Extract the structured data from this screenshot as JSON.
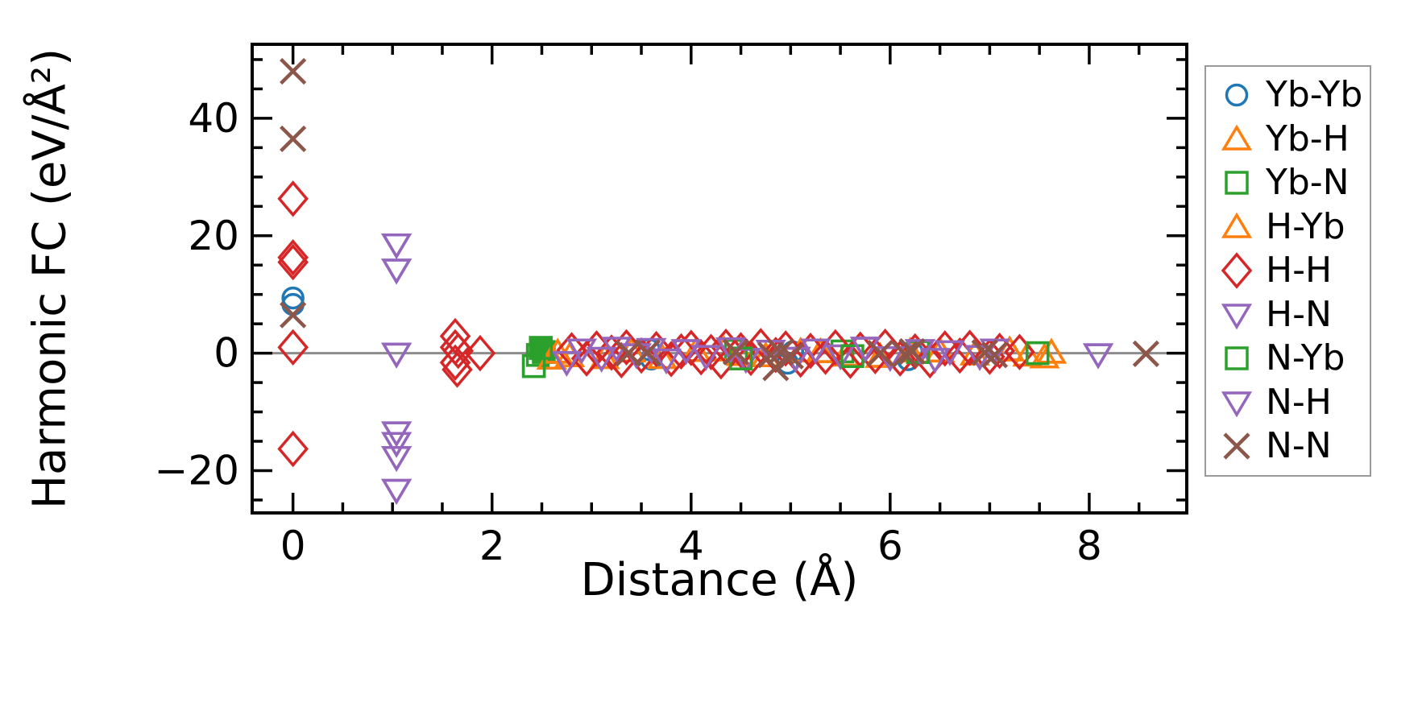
{
  "chart_data": {
    "type": "scatter",
    "title": "",
    "xlabel": "Distance (Å)",
    "ylabel": "Harmonic FC (eV/Å²)",
    "xlim": [
      -0.41,
      8.98
    ],
    "ylim": [
      -27.2,
      52.6
    ],
    "grid": false,
    "legend_position": "outside-right",
    "x_major_ticks": [
      {
        "v": 0,
        "label": "0"
      },
      {
        "v": 2,
        "label": "2"
      },
      {
        "v": 4,
        "label": "4"
      },
      {
        "v": 6,
        "label": "6"
      },
      {
        "v": 8,
        "label": "8"
      }
    ],
    "y_major_ticks": [
      {
        "v": 40,
        "label": "40"
      },
      {
        "v": 20,
        "label": "20"
      },
      {
        "v": 0,
        "label": "0"
      },
      {
        "v": -20,
        "label": "−20"
      }
    ],
    "x_minor_interval": 0.5,
    "x_major_interval": 2,
    "y_minor_interval": 5,
    "y_major_interval": 20,
    "zero_line": {
      "y": 0,
      "color": "#8c8c8c"
    },
    "axis_color": "#000000",
    "series": [
      {
        "name": "Yb-Yb",
        "marker": "circle",
        "color": "#1f77b4",
        "points": [
          [
            0,
            9.4
          ],
          [
            0,
            8.3
          ],
          [
            3.58,
            0.6
          ],
          [
            3.6,
            -1.0
          ],
          [
            4.97,
            -1.7
          ],
          [
            5.02,
            0.2
          ],
          [
            6.18,
            -1.1
          ],
          [
            6.22,
            0.2
          ]
        ]
      },
      {
        "name": "Yb-H",
        "marker": "triangle-up",
        "color": "#ff7f0e",
        "points": [
          [
            2.6,
            -0.9
          ],
          [
            2.66,
            0.1
          ],
          [
            2.78,
            -0.5
          ],
          [
            3.13,
            -0.8
          ],
          [
            3.4,
            0.3
          ],
          [
            3.71,
            -0.8
          ],
          [
            4.05,
            0.4
          ],
          [
            4.33,
            0.5
          ],
          [
            4.5,
            -0.3
          ],
          [
            4.75,
            -0.5
          ],
          [
            5.1,
            0.3
          ],
          [
            5.3,
            0.2
          ],
          [
            5.55,
            -0.4
          ],
          [
            5.9,
            -0.6
          ],
          [
            6.2,
            0.3
          ],
          [
            6.5,
            0.3
          ],
          [
            6.85,
            -0.2
          ],
          [
            7.2,
            0.5
          ],
          [
            7.38,
            -0.4
          ],
          [
            7.55,
            -0.7
          ],
          [
            7.62,
            0.1
          ]
        ]
      },
      {
        "name": "Yb-N",
        "marker": "square",
        "color": "#2ca02c",
        "points": [
          [
            2.42,
            -2.2
          ],
          [
            2.46,
            -0.3
          ],
          [
            4.45,
            0.4
          ],
          [
            5.52,
            0.3
          ],
          [
            6.28,
            0.2
          ],
          [
            7.48,
            0.0
          ]
        ],
        "filled_points": [
          [
            2.49,
            0.9
          ],
          [
            2.52,
            0.2
          ]
        ]
      },
      {
        "name": "H-Yb",
        "marker": "triangle-up",
        "color": "#ff7f0e",
        "points": [
          [
            2.6,
            -0.9
          ],
          [
            2.66,
            0.1
          ],
          [
            3.13,
            -0.8
          ],
          [
            3.71,
            -0.8
          ],
          [
            4.33,
            0.5
          ],
          [
            4.75,
            -0.5
          ],
          [
            5.3,
            0.2
          ],
          [
            5.9,
            -0.6
          ],
          [
            6.5,
            0.3
          ],
          [
            7.2,
            0.5
          ],
          [
            7.62,
            0.1
          ]
        ]
      },
      {
        "name": "H-H",
        "marker": "diamond",
        "color": "#d62728",
        "points": [
          [
            0,
            26.3
          ],
          [
            0,
            16.3
          ],
          [
            0,
            15.5
          ],
          [
            0,
            1.0
          ],
          [
            0,
            -16.3
          ],
          [
            1.63,
            2.9
          ],
          [
            1.63,
            1.0
          ],
          [
            1.66,
            0.4
          ],
          [
            1.63,
            -1.6
          ],
          [
            1.65,
            -2.8
          ],
          [
            1.88,
            0.0
          ],
          [
            2.8,
            0.5
          ],
          [
            2.95,
            -0.9
          ],
          [
            3.05,
            0.8
          ],
          [
            3.2,
            0.1
          ],
          [
            3.3,
            -1.2
          ],
          [
            3.35,
            1.0
          ],
          [
            3.5,
            -0.4
          ],
          [
            3.65,
            0.7
          ],
          [
            3.8,
            -1.0
          ],
          [
            3.9,
            0.3
          ],
          [
            4.0,
            0.9
          ],
          [
            4.1,
            -0.7
          ],
          [
            4.2,
            0.2
          ],
          [
            4.3,
            -1.4
          ],
          [
            4.35,
            1.1
          ],
          [
            4.5,
            0.5
          ],
          [
            4.6,
            -0.8
          ],
          [
            4.7,
            1.2
          ],
          [
            4.85,
            -0.3
          ],
          [
            4.95,
            0.8
          ],
          [
            5.1,
            -1.1
          ],
          [
            5.2,
            0.4
          ],
          [
            5.35,
            -0.6
          ],
          [
            5.45,
            1.0
          ],
          [
            5.6,
            -1.3
          ],
          [
            5.7,
            0.6
          ],
          [
            5.85,
            -0.5
          ],
          [
            5.95,
            1.1
          ],
          [
            6.1,
            -0.9
          ],
          [
            6.25,
            0.3
          ],
          [
            6.4,
            -1.2
          ],
          [
            6.55,
            0.8
          ],
          [
            6.7,
            -0.4
          ],
          [
            6.8,
            0.9
          ],
          [
            7.0,
            -0.6
          ],
          [
            7.1,
            0.4
          ],
          [
            7.3,
            0.2
          ]
        ]
      },
      {
        "name": "H-N",
        "marker": "triangle-down",
        "color": "#9467bd",
        "points": [
          [
            1.04,
            18.5
          ],
          [
            1.04,
            14.2
          ],
          [
            1.04,
            -0.1
          ],
          [
            1.04,
            -13.5
          ],
          [
            1.04,
            -15.3
          ],
          [
            1.04,
            -17.7
          ],
          [
            1.04,
            -23.3
          ],
          [
            2.75,
            -1.5
          ],
          [
            2.9,
            0.6
          ],
          [
            3.1,
            -0.8
          ],
          [
            3.25,
            0.9
          ],
          [
            3.45,
            -0.2
          ],
          [
            3.6,
            0.7
          ],
          [
            3.75,
            -1.1
          ],
          [
            3.95,
            0.5
          ],
          [
            4.15,
            -0.5
          ],
          [
            4.4,
            0.8
          ],
          [
            4.55,
            -1.0
          ],
          [
            4.8,
            0.4
          ],
          [
            5.05,
            -0.8
          ],
          [
            5.25,
            0.6
          ],
          [
            5.5,
            -0.4
          ],
          [
            5.75,
            0.9
          ],
          [
            6.0,
            -0.7
          ],
          [
            6.3,
            0.5
          ],
          [
            6.45,
            -1.0
          ],
          [
            6.6,
            0.3
          ],
          [
            6.9,
            -0.5
          ],
          [
            7.05,
            0.6
          ],
          [
            8.09,
            -0.2
          ]
        ]
      },
      {
        "name": "N-Yb",
        "marker": "square",
        "color": "#2ca02c",
        "points": [
          [
            2.42,
            -2.2
          ],
          [
            2.49,
            0.9
          ],
          [
            4.5,
            -0.9
          ],
          [
            5.62,
            -0.5
          ],
          [
            6.28,
            0.2
          ],
          [
            7.48,
            0.0
          ]
        ]
      },
      {
        "name": "N-H",
        "marker": "triangle-down",
        "color": "#9467bd",
        "points": [
          [
            1.04,
            18.5
          ],
          [
            1.04,
            14.2
          ],
          [
            1.04,
            -0.1
          ],
          [
            1.04,
            -13.5
          ],
          [
            1.04,
            -15.3
          ],
          [
            1.04,
            -17.7
          ],
          [
            1.04,
            -23.3
          ],
          [
            2.9,
            0.6
          ],
          [
            3.45,
            -0.2
          ],
          [
            3.95,
            0.5
          ],
          [
            4.4,
            0.8
          ],
          [
            5.05,
            -0.8
          ],
          [
            5.75,
            0.9
          ],
          [
            6.3,
            0.5
          ],
          [
            6.9,
            -0.5
          ],
          [
            8.09,
            -0.2
          ]
        ]
      },
      {
        "name": "N-N",
        "marker": "x",
        "color": "#8c564b",
        "points": [
          [
            0,
            48.0
          ],
          [
            0,
            36.5
          ],
          [
            0,
            6.5
          ],
          [
            3.37,
            0.0
          ],
          [
            3.56,
            0.1
          ],
          [
            4.45,
            0.2
          ],
          [
            4.8,
            -0.3
          ],
          [
            4.85,
            -2.5
          ],
          [
            4.9,
            0.2
          ],
          [
            5.0,
            -0.5
          ],
          [
            5.9,
            0.0
          ],
          [
            6.15,
            -0.2
          ],
          [
            6.22,
            0.3
          ],
          [
            6.95,
            0.1
          ],
          [
            7.05,
            -0.3
          ],
          [
            8.57,
            -0.1
          ]
        ]
      }
    ]
  }
}
